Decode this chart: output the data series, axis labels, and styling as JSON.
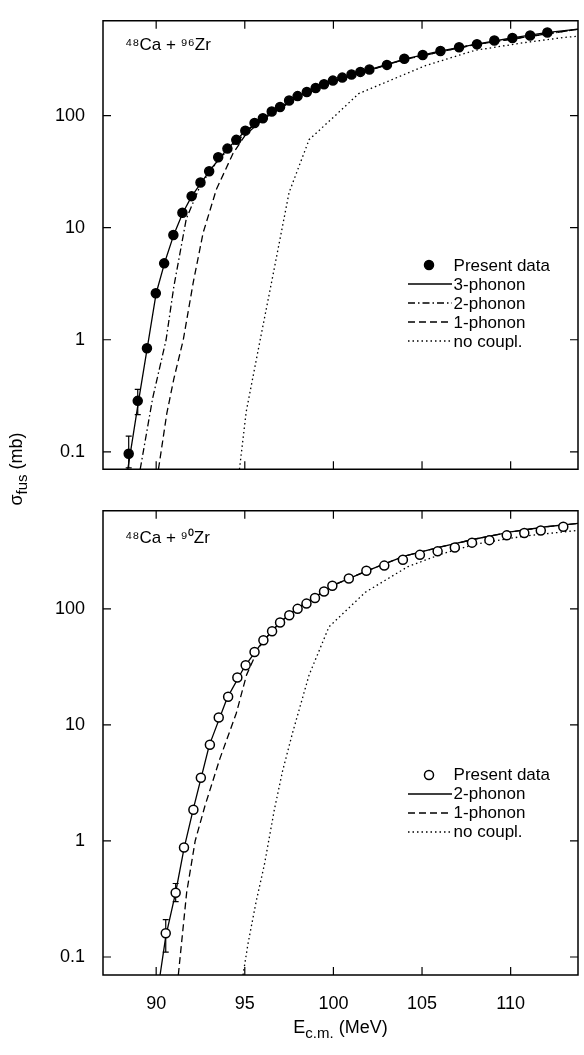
{
  "chart_data": [
    {
      "type": "line",
      "annotations": [
        "⁴⁸Ca + ⁹⁶Zr"
      ],
      "ylabel": "σ$_{fus}$ (mb)",
      "log": "y",
      "legend": "right",
      "tick_labels": "y",
      "xlim": [
        87,
        113.8
      ],
      "xticks": [
        90,
        95,
        100,
        105,
        110
      ],
      "ylim": [
        0.07,
        700
      ],
      "yticks": [
        0.1,
        1,
        10,
        100
      ],
      "series": [
        {
          "name": "Present data",
          "type": "scatter",
          "marker": "circle",
          "color": "#000000",
          "x": [
            88.45,
            88.96,
            89.48,
            89.98,
            90.45,
            90.97,
            91.48,
            92.0,
            92.5,
            92.99,
            93.5,
            94.02,
            94.52,
            95.03,
            95.55,
            96.02,
            96.52,
            96.99,
            97.5,
            97.98,
            98.5,
            99.0,
            99.47,
            99.97,
            100.5,
            101.02,
            101.52,
            102.03,
            103.02,
            104.0,
            105.04,
            106.04,
            107.09,
            108.1,
            109.08,
            110.1,
            111.1,
            112.07
          ],
          "values": [
            0.096,
            0.285,
            0.84,
            2.6,
            4.8,
            8.6,
            13.6,
            19.1,
            25.3,
            31.8,
            42.5,
            50.7,
            60.7,
            73.3,
            85.9,
            94.5,
            108.6,
            119,
            136,
            149,
            162,
            176,
            190,
            205,
            218,
            232,
            245,
            257,
            283,
            321,
            347,
            377,
            407,
            433,
            467,
            492,
            517,
            551
          ],
          "errors": [
            [
              0.072,
              0.138
            ],
            [
              0.215,
              0.36
            ],
            null,
            null,
            null,
            null,
            null,
            null,
            null,
            null,
            null,
            null,
            null,
            null,
            null,
            null,
            null,
            null,
            null,
            null,
            null,
            null,
            null,
            null,
            null,
            null,
            null,
            null,
            null,
            null,
            null,
            null,
            null,
            null,
            null,
            null,
            null,
            null
          ]
        },
        {
          "name": "3-phonon",
          "type": "line",
          "line_style": "solid",
          "color": "#000000",
          "x": [
            88.4,
            89,
            89.5,
            90,
            90.5,
            91,
            91.5,
            92,
            93,
            94,
            95,
            96,
            97,
            98,
            99,
            100,
            102,
            104,
            106,
            108,
            110,
            112,
            113.8
          ],
          "values": [
            0.07,
            0.28,
            0.85,
            2.6,
            5,
            8.7,
            13.5,
            19,
            32,
            50,
            72,
            94,
            119,
            148,
            176,
            205,
            256,
            318,
            375,
            432,
            490,
            548,
            590
          ]
        },
        {
          "name": "2-phonon",
          "type": "line",
          "line_style": "dashdot",
          "color": "#000000",
          "x": [
            89.1,
            89.8,
            90.56,
            91,
            91.7,
            92.5,
            93.5,
            94.5,
            95.5,
            97,
            100,
            104,
            108,
            113.8
          ],
          "values": [
            0.07,
            0.3,
            1,
            3,
            12,
            24,
            40,
            58,
            82,
            118,
            204,
            316,
            430,
            588
          ]
        },
        {
          "name": "1-phonon",
          "type": "line",
          "line_style": "dashed",
          "color": "#000000",
          "x": [
            90.13,
            90.6,
            91.0,
            91.53,
            92.1,
            92.65,
            93.4,
            94.34,
            95,
            96,
            98,
            100,
            104,
            108,
            113.8
          ],
          "values": [
            0.07,
            0.22,
            0.45,
            1,
            3.3,
            9,
            22,
            46,
            66,
            92,
            146,
            202,
            316,
            430,
            588
          ]
        },
        {
          "name": "no coupl.",
          "type": "line",
          "line_style": "dotted",
          "color": "#000000",
          "x": [
            94.7,
            95.08,
            95.83,
            96.58,
            97.5,
            98.63,
            99.94,
            101.43,
            103.3,
            105.17,
            107.97,
            110.77,
            113.0,
            113.8
          ],
          "values": [
            0.07,
            0.228,
            0.93,
            3.7,
            20.6,
            61,
            94.5,
            157,
            209,
            278,
            381,
            447,
            497,
            510
          ]
        }
      ]
    },
    {
      "type": "line",
      "annotations": [
        "⁴⁸Ca + ⁹⁰Zr"
      ],
      "xlabel": "E$_{c.m.}$ (MeV)",
      "log": "y",
      "legend": "right",
      "xlim": [
        87,
        113.8
      ],
      "xticks": [
        90,
        95,
        100,
        105,
        110
      ],
      "ylim": [
        0.07,
        700
      ],
      "yticks": [
        0.1,
        1,
        10,
        100
      ],
      "series": [
        {
          "name": "Present data",
          "type": "scatter",
          "marker": "open-circle",
          "color": "#000000",
          "x": [
            90.54,
            91.1,
            91.57,
            92.1,
            92.52,
            93.03,
            93.53,
            94.06,
            94.58,
            95.05,
            95.55,
            96.05,
            96.54,
            96.99,
            97.51,
            97.98,
            98.48,
            98.96,
            99.47,
            99.94,
            100.87,
            101.86,
            102.87,
            103.92,
            104.88,
            105.88,
            106.85,
            107.82,
            108.8,
            109.78,
            110.77,
            111.7,
            112.97
          ],
          "values": [
            0.16,
            0.358,
            0.88,
            1.86,
            3.5,
            6.74,
            11.6,
            17.5,
            25.6,
            32.7,
            42.5,
            53.7,
            64.1,
            76.2,
            88.1,
            100,
            111,
            124,
            141,
            158,
            183,
            213,
            236,
            265,
            292,
            313,
            338,
            372,
            391,
            430,
            450,
            473,
            510
          ],
          "errors": [
            [
              0.11,
              0.21
            ],
            [
              0.3,
              0.43
            ],
            null,
            null,
            null,
            null,
            null,
            null,
            null,
            null,
            null,
            null,
            null,
            null,
            null,
            null,
            null,
            null,
            null,
            null,
            null,
            null,
            null,
            null,
            null,
            null,
            null,
            null,
            null,
            null,
            null,
            null,
            null
          ]
        },
        {
          "name": "2-phonon",
          "type": "line",
          "line_style": "solid",
          "color": "#000000",
          "x": [
            90.22,
            90.54,
            91.1,
            91.57,
            92.1,
            93,
            94,
            95,
            96,
            97,
            98,
            100,
            102,
            104,
            106,
            108,
            110,
            112,
            113.8
          ],
          "values": [
            0.07,
            0.15,
            0.36,
            0.86,
            1.9,
            6.7,
            17,
            32,
            52,
            77,
            102,
            160,
            216,
            285,
            340,
            400,
            460,
            510,
            545
          ]
        },
        {
          "name": "1-phonon",
          "type": "line",
          "line_style": "dashed",
          "color": "#000000",
          "x": [
            91.25,
            91.72,
            92.2,
            92.75,
            93.59,
            94.52,
            95.1,
            95.6,
            96,
            97,
            98,
            100,
            102,
            104,
            106,
            108,
            110,
            112,
            113.8
          ],
          "values": [
            0.07,
            0.36,
            1.0,
            2.0,
            5.1,
            12.6,
            27,
            40,
            52,
            77,
            102,
            160,
            216,
            285,
            340,
            400,
            460,
            510,
            545
          ]
        },
        {
          "name": "no coupl.",
          "type": "line",
          "line_style": "dotted",
          "color": "#000000",
          "x": [
            94.9,
            95.18,
            95.64,
            96.11,
            96.67,
            97.13,
            97.7,
            98.63,
            99.75,
            101.8,
            104.2,
            106.1,
            107.97,
            110.77,
            113.8
          ],
          "values": [
            0.07,
            0.13,
            0.3,
            0.63,
            1.87,
            4.0,
            8.6,
            27,
            70,
            139,
            231,
            297,
            360,
            424,
            475
          ]
        }
      ]
    }
  ]
}
